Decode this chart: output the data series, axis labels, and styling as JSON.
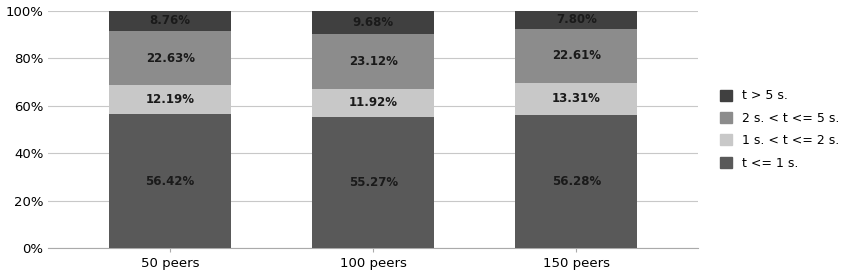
{
  "categories": [
    "50 peers",
    "100 peers",
    "150 peers"
  ],
  "series": [
    {
      "label": "t <= 1 s.",
      "values": [
        56.42,
        55.27,
        56.28
      ],
      "color": "#595959"
    },
    {
      "label": "1 s. < t <= 2 s.",
      "values": [
        12.19,
        11.92,
        13.31
      ],
      "color": "#c8c8c8"
    },
    {
      "label": "2 s. < t <= 5 s.",
      "values": [
        22.63,
        23.12,
        22.61
      ],
      "color": "#8c8c8c"
    },
    {
      "label": "t > 5 s.",
      "values": [
        8.76,
        9.68,
        7.8
      ],
      "color": "#404040"
    }
  ],
  "ylim": [
    0,
    100
  ],
  "ytick_labels": [
    "0%",
    "20%",
    "40%",
    "60%",
    "80%",
    "100%"
  ],
  "ytick_values": [
    0,
    20,
    40,
    60,
    80,
    100
  ],
  "background_color": "#ffffff",
  "bar_width": 0.6,
  "label_fontsize": 8.5,
  "legend_fontsize": 9,
  "tick_fontsize": 9.5,
  "label_color": "#1a1a1a"
}
